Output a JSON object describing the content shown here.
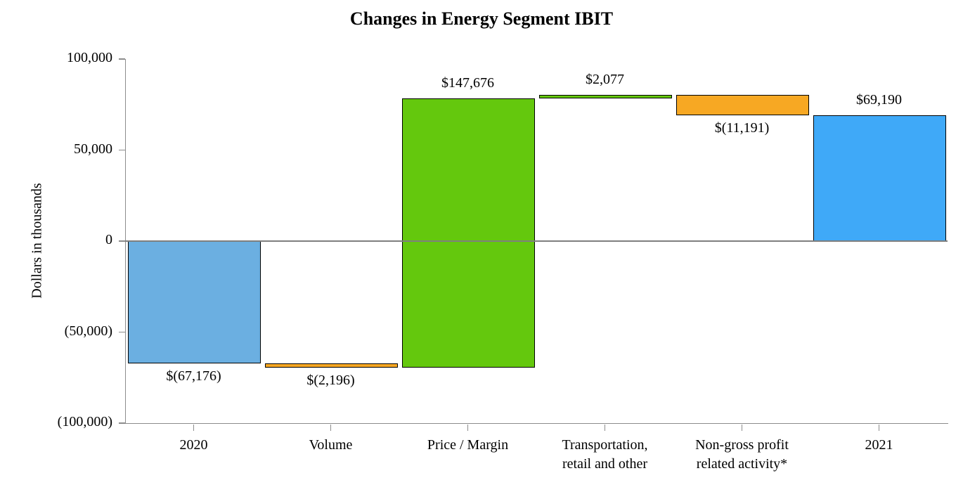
{
  "chart_data": {
    "type": "bar",
    "subtype": "waterfall",
    "title": "Changes in Energy Segment IBIT",
    "xlabel": "",
    "ylabel": "Dollars in thousands",
    "ylim": [
      -100000,
      100000
    ],
    "grid": false,
    "legend": false,
    "zero_line": true,
    "yticks": [
      {
        "value": 100000,
        "label": "100,000"
      },
      {
        "value": 50000,
        "label": "50,000"
      },
      {
        "value": 0,
        "label": "0"
      },
      {
        "value": -50000,
        "label": "(50,000)"
      },
      {
        "value": -100000,
        "label": "(100,000)"
      }
    ],
    "bars": [
      {
        "category": "2020",
        "category_lines": [
          "2020"
        ],
        "start": 0,
        "end": -67176,
        "value": -67176,
        "value_label": "$(67,176)",
        "label_position": "below",
        "role": "total-start",
        "color_key": "total_2020"
      },
      {
        "category": "Volume",
        "category_lines": [
          "Volume"
        ],
        "start": -67176,
        "end": -69372,
        "value": -2196,
        "value_label": "$(2,196)",
        "label_position": "below",
        "role": "decrease",
        "color_key": "decrease"
      },
      {
        "category": "Price / Margin",
        "category_lines": [
          "Price / Margin"
        ],
        "start": -69372,
        "end": 78304,
        "value": 147676,
        "value_label": "$147,676",
        "label_position": "above",
        "role": "increase",
        "color_key": "increase"
      },
      {
        "category": "Transportation, retail and other",
        "category_lines": [
          "Transportation,",
          "retail and other"
        ],
        "start": 78304,
        "end": 80381,
        "value": 2077,
        "value_label": "$2,077",
        "label_position": "above",
        "role": "increase",
        "color_key": "increase"
      },
      {
        "category": "Non-gross profit related activity*",
        "category_lines": [
          "Non-gross profit",
          "related activity*"
        ],
        "start": 80381,
        "end": 69190,
        "value": -11191,
        "value_label": "$(11,191)",
        "label_position": "below",
        "role": "decrease",
        "color_key": "decrease"
      },
      {
        "category": "2021",
        "category_lines": [
          "2021"
        ],
        "start": 0,
        "end": 69190,
        "value": 69190,
        "value_label": "$69,190",
        "label_position": "above",
        "role": "total-end",
        "color_key": "total_2021"
      }
    ],
    "colors": {
      "total_2020": "#6BAFE1",
      "total_2021": "#3FA9F8",
      "increase": "#64C80D",
      "decrease": "#F7A823",
      "bar_border": "#000000",
      "axis": "#8C8C8C",
      "zero_line": "#7F7F7F"
    }
  }
}
